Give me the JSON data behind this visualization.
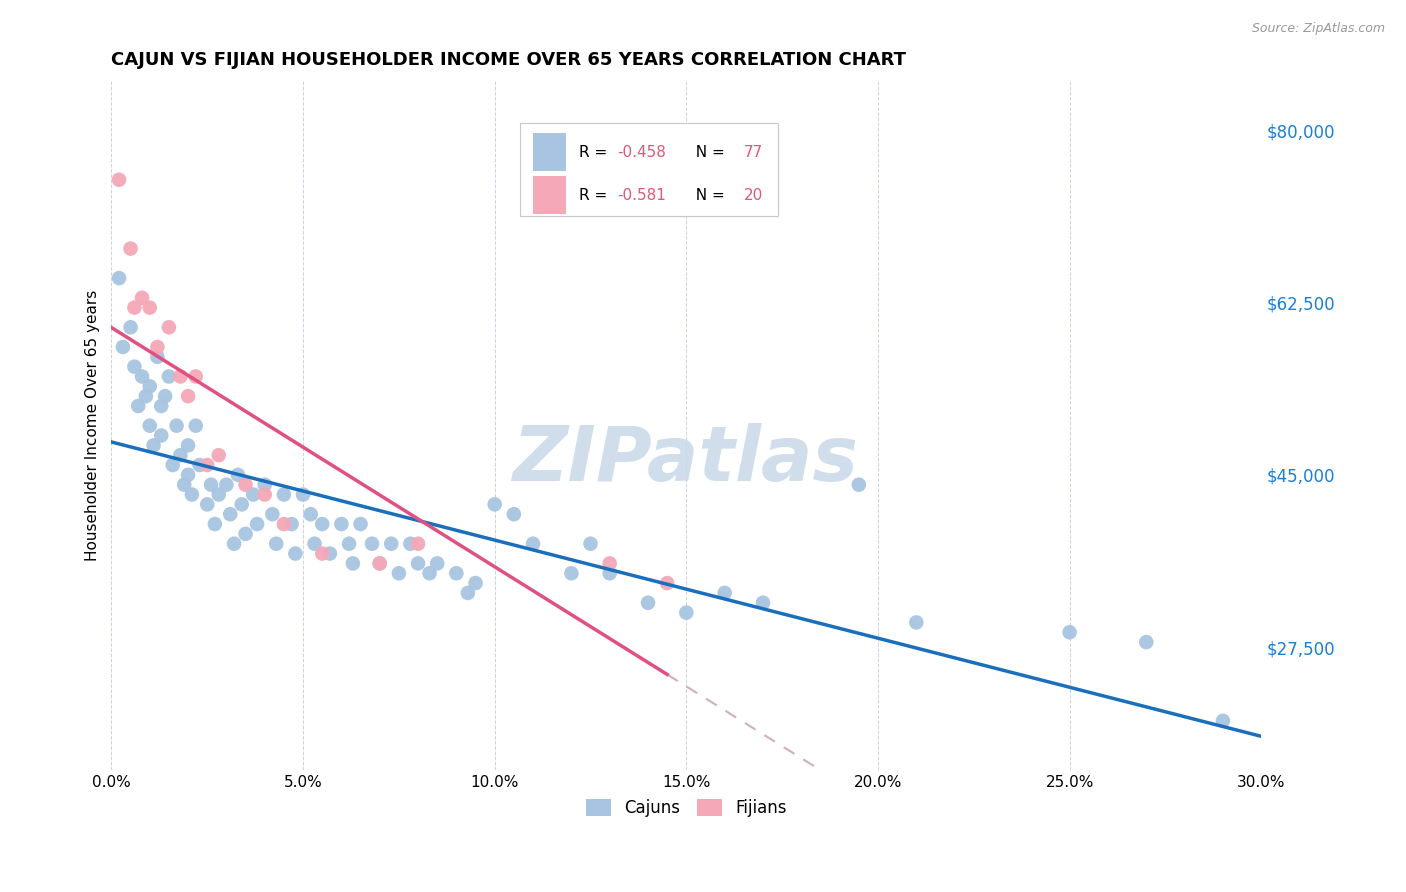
{
  "title": "CAJUN VS FIJIAN HOUSEHOLDER INCOME OVER 65 YEARS CORRELATION CHART",
  "source": "Source: ZipAtlas.com",
  "ylabel": "Householder Income Over 65 years",
  "xlim": [
    0.0,
    0.3
  ],
  "ylim": [
    15000,
    85000
  ],
  "xtick_labels": [
    "0.0%",
    "5.0%",
    "10.0%",
    "15.0%",
    "20.0%",
    "25.0%",
    "30.0%"
  ],
  "xtick_vals": [
    0.0,
    0.05,
    0.1,
    0.15,
    0.2,
    0.25,
    0.3
  ],
  "ytick_vals": [
    27500,
    45000,
    62500,
    80000
  ],
  "ytick_labels": [
    "$27,500",
    "$45,000",
    "$62,500",
    "$80,000"
  ],
  "cajun_color": "#a8c4e0",
  "fijian_color": "#f4a8b8",
  "cajun_line_color": "#1a6fbd",
  "fijian_line_color": "#e05080",
  "fijian_line_dashed_color": "#d0b0b8",
  "watermark": "ZIPatlas",
  "watermark_color": "#c8d8e8",
  "cajun_x": [
    0.002,
    0.003,
    0.005,
    0.006,
    0.007,
    0.008,
    0.009,
    0.01,
    0.01,
    0.011,
    0.012,
    0.013,
    0.013,
    0.014,
    0.015,
    0.016,
    0.017,
    0.018,
    0.019,
    0.02,
    0.02,
    0.021,
    0.022,
    0.023,
    0.025,
    0.026,
    0.027,
    0.028,
    0.03,
    0.031,
    0.032,
    0.033,
    0.034,
    0.035,
    0.037,
    0.038,
    0.04,
    0.042,
    0.043,
    0.045,
    0.047,
    0.048,
    0.05,
    0.052,
    0.053,
    0.055,
    0.057,
    0.06,
    0.062,
    0.063,
    0.065,
    0.068,
    0.07,
    0.073,
    0.075,
    0.078,
    0.08,
    0.083,
    0.085,
    0.09,
    0.093,
    0.095,
    0.1,
    0.105,
    0.11,
    0.12,
    0.125,
    0.13,
    0.14,
    0.15,
    0.16,
    0.17,
    0.195,
    0.21,
    0.25,
    0.27,
    0.29
  ],
  "cajun_y": [
    65000,
    58000,
    60000,
    56000,
    52000,
    55000,
    53000,
    50000,
    54000,
    48000,
    57000,
    52000,
    49000,
    53000,
    55000,
    46000,
    50000,
    47000,
    44000,
    48000,
    45000,
    43000,
    50000,
    46000,
    42000,
    44000,
    40000,
    43000,
    44000,
    41000,
    38000,
    45000,
    42000,
    39000,
    43000,
    40000,
    44000,
    41000,
    38000,
    43000,
    40000,
    37000,
    43000,
    41000,
    38000,
    40000,
    37000,
    40000,
    38000,
    36000,
    40000,
    38000,
    36000,
    38000,
    35000,
    38000,
    36000,
    35000,
    36000,
    35000,
    33000,
    34000,
    42000,
    41000,
    38000,
    35000,
    38000,
    35000,
    32000,
    31000,
    33000,
    32000,
    44000,
    30000,
    29000,
    28000,
    20000
  ],
  "fijian_x": [
    0.002,
    0.005,
    0.006,
    0.008,
    0.01,
    0.012,
    0.015,
    0.018,
    0.02,
    0.022,
    0.025,
    0.028,
    0.035,
    0.04,
    0.045,
    0.055,
    0.07,
    0.08,
    0.13,
    0.145
  ],
  "fijian_y": [
    75000,
    68000,
    62000,
    63000,
    62000,
    58000,
    60000,
    55000,
    53000,
    55000,
    46000,
    47000,
    44000,
    43000,
    40000,
    37000,
    36000,
    38000,
    36000,
    34000
  ]
}
